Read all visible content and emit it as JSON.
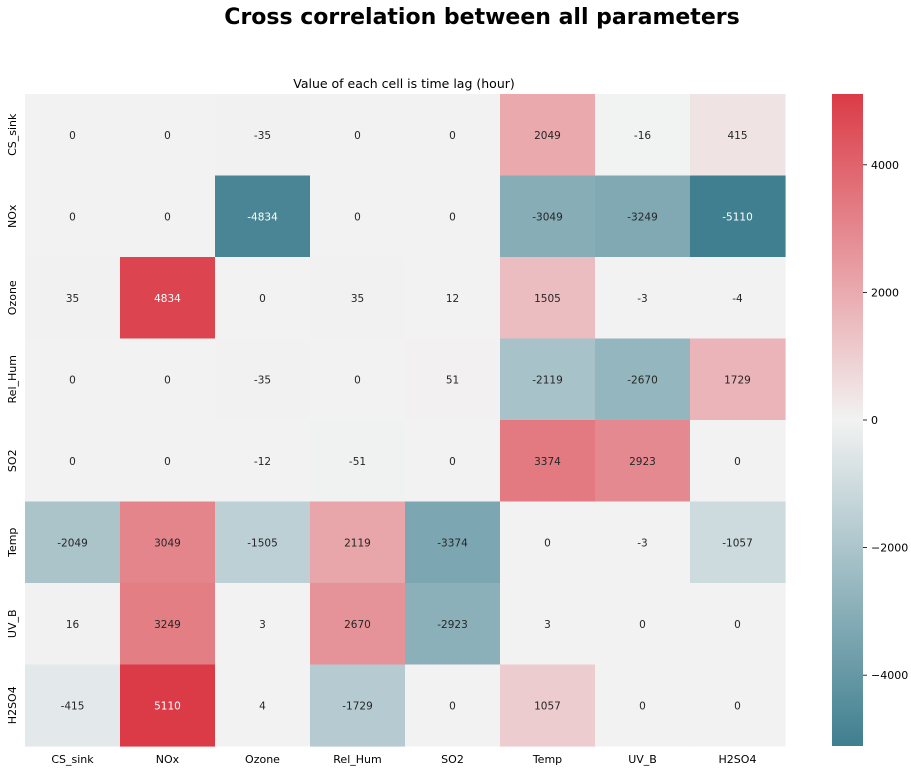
{
  "chart_data": {
    "type": "heatmap",
    "title": "Cross correlation between all parameters",
    "subtitle": "Value of each cell is time lag (hour)",
    "rows": [
      "CS_sink",
      "NOx",
      "Ozone",
      "Rel_Hum",
      "SO2",
      "Temp",
      "UV_B",
      "H2SO4"
    ],
    "columns": [
      "CS_sink",
      "NOx",
      "Ozone",
      "Rel_Hum",
      "SO2",
      "Temp",
      "UV_B",
      "H2SO4"
    ],
    "values": [
      [
        0,
        0,
        -35,
        0,
        0,
        2049,
        -16,
        415
      ],
      [
        0,
        0,
        -4834,
        0,
        0,
        -3049,
        -3249,
        -5110
      ],
      [
        35,
        4834,
        0,
        35,
        12,
        1505,
        -3,
        -4
      ],
      [
        0,
        0,
        -35,
        0,
        51,
        -2119,
        -2670,
        1729
      ],
      [
        0,
        0,
        -12,
        -51,
        0,
        3374,
        2923,
        0
      ],
      [
        -2049,
        3049,
        -1505,
        2119,
        -3374,
        0,
        -3,
        -1057
      ],
      [
        16,
        3249,
        3,
        2670,
        -2923,
        3,
        0,
        0
      ],
      [
        -415,
        5110,
        4,
        -1729,
        0,
        1057,
        0,
        0
      ]
    ],
    "colorbar": {
      "vmin": -5110,
      "vmax": 5110,
      "ticks": [
        -4000,
        -2000,
        0,
        2000,
        4000
      ],
      "tick_labels": [
        "−4000",
        "−2000",
        "0",
        "2000",
        "4000"
      ]
    },
    "colors": {
      "negative_end": "#3f7f8f",
      "center": "#f2f2f2",
      "positive_end": "#db3b47"
    },
    "grid": false,
    "legend": "right"
  }
}
